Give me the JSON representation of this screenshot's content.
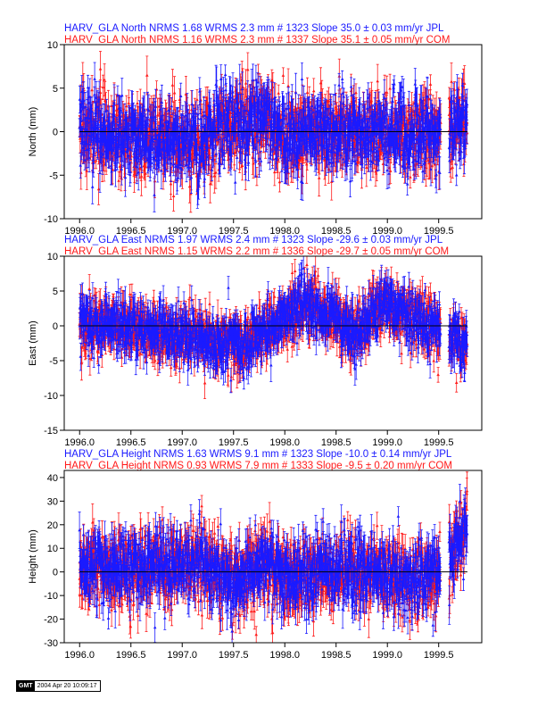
{
  "colors": {
    "jpl": "#1a1aff",
    "com": "#ff1a1a",
    "axis": "#000000"
  },
  "stamp": {
    "logo": "GMT",
    "timestamp": "2004 Apr 20 10:09:17"
  },
  "chart_data": [
    {
      "type": "scatter",
      "component": "north",
      "titles": [
        "HARV_GLA North NRMS 1.68 WRMS  2.3 mm # 1323 Slope   35.0 ±  0.03 mm/yr JPL",
        "HARV_GLA North NRMS 1.16 WRMS  2.3 mm # 1337 Slope   35.1 ±  0.05 mm/yr COM"
      ],
      "xlabel": "",
      "ylabel": "North (mm)",
      "xlim": [
        1995.85,
        1999.92
      ],
      "ylim": [
        -10,
        10
      ],
      "x_ticks": [
        1996.0,
        1996.5,
        1997.0,
        1997.5,
        1998.0,
        1998.5,
        1999.0,
        1999.5
      ],
      "x_tick_labels": [
        "1996.0",
        "1996.5",
        "1997.0",
        "1997.5",
        "1998.0",
        "1998.5",
        "1999.0",
        "1999.5"
      ],
      "y_ticks": [
        -10,
        -5,
        0,
        5,
        10
      ],
      "y_tick_labels": [
        "-10",
        "-5",
        "0",
        "5",
        "10"
      ],
      "x_range": [
        1996.0,
        1999.78
      ],
      "gaps": [
        [
          1999.52,
          1999.6
        ]
      ],
      "scatter_sd": 2.3,
      "error_bar": 1.5,
      "wander": [
        [
          1996.0,
          0.5
        ],
        [
          1996.3,
          -0.8
        ],
        [
          1996.7,
          -0.5
        ],
        [
          1997.1,
          -1.5
        ],
        [
          1997.35,
          0.2
        ],
        [
          1997.75,
          1.8
        ],
        [
          1998.0,
          -0.5
        ],
        [
          1998.3,
          0.4
        ],
        [
          1998.7,
          -0.3
        ],
        [
          1999.0,
          0.3
        ],
        [
          1999.3,
          -0.8
        ],
        [
          1999.8,
          1.2
        ]
      ],
      "series": [
        {
          "name": "JPL",
          "n": 1323,
          "nrms": 1.68,
          "wrms_mm": 2.3,
          "slope_mm_yr": 35.0,
          "slope_sigma": 0.03
        },
        {
          "name": "COM",
          "n": 1337,
          "nrms": 1.16,
          "wrms_mm": 2.3,
          "slope_mm_yr": 35.1,
          "slope_sigma": 0.05
        }
      ]
    },
    {
      "type": "scatter",
      "component": "east",
      "titles": [
        "HARV_GLA East NRMS 1.97 WRMS  2.4 mm # 1323 Slope  -29.6 ±  0.03 mm/yr JPL",
        "HARV_GLA East NRMS 1.15 WRMS  2.2 mm # 1336 Slope  -29.7 ±  0.05 mm/yr COM"
      ],
      "xlabel": "",
      "ylabel": "East (mm)",
      "xlim": [
        1995.85,
        1999.92
      ],
      "ylim": [
        -15,
        10
      ],
      "x_ticks": [
        1996.0,
        1996.5,
        1997.0,
        1997.5,
        1998.0,
        1998.5,
        1999.0,
        1999.5
      ],
      "x_tick_labels": [
        "1996.0",
        "1996.5",
        "1997.0",
        "1997.5",
        "1998.0",
        "1998.5",
        "1999.0",
        "1999.5"
      ],
      "y_ticks": [
        -15,
        -10,
        -5,
        0,
        5,
        10
      ],
      "y_tick_labels": [
        "-15",
        "-10",
        "-5",
        "0",
        "5",
        "10"
      ],
      "x_range": [
        1996.0,
        1999.78
      ],
      "gaps": [
        [
          1999.52,
          1999.6
        ]
      ],
      "scatter_sd": 2.0,
      "error_bar": 1.6,
      "wander": [
        [
          1996.0,
          0.5
        ],
        [
          1996.4,
          0.0
        ],
        [
          1996.8,
          -1.0
        ],
        [
          1997.2,
          -1.8
        ],
        [
          1997.6,
          -2.5
        ],
        [
          1997.95,
          0.5
        ],
        [
          1998.2,
          3.0
        ],
        [
          1998.45,
          1.5
        ],
        [
          1998.7,
          -1.5
        ],
        [
          1998.95,
          3.5
        ],
        [
          1999.3,
          0.5
        ],
        [
          1999.55,
          -1.0
        ],
        [
          1999.8,
          -3.0
        ]
      ],
      "series": [
        {
          "name": "JPL",
          "n": 1323,
          "nrms": 1.97,
          "wrms_mm": 2.4,
          "slope_mm_yr": -29.6,
          "slope_sigma": 0.03
        },
        {
          "name": "COM",
          "n": 1336,
          "nrms": 1.15,
          "wrms_mm": 2.2,
          "slope_mm_yr": -29.7,
          "slope_sigma": 0.05
        }
      ]
    },
    {
      "type": "scatter",
      "component": "height",
      "titles": [
        "HARV_GLA Height NRMS 1.63 WRMS  9.1 mm # 1323 Slope  -10.0 ±  0.14 mm/yr JPL",
        "HARV_GLA Height NRMS 0.93 WRMS  7.9 mm # 1333 Slope   -9.5 ±  0.20 mm/yr COM"
      ],
      "xlabel": "",
      "ylabel": "Height (mm)",
      "xlim": [
        1995.85,
        1999.92
      ],
      "ylim": [
        -30,
        43
      ],
      "x_ticks": [
        1996.0,
        1996.5,
        1997.0,
        1997.5,
        1998.0,
        1998.5,
        1999.0,
        1999.5
      ],
      "x_tick_labels": [
        "1996.0",
        "1996.5",
        "1997.0",
        "1997.5",
        "1998.0",
        "1998.5",
        "1999.0",
        "1999.5"
      ],
      "y_ticks": [
        -30,
        -20,
        -10,
        0,
        10,
        20,
        30,
        40
      ],
      "y_tick_labels": [
        "-30",
        "-20",
        "-10",
        "0",
        "10",
        "20",
        "30",
        "40"
      ],
      "x_range": [
        1996.0,
        1999.78
      ],
      "gaps": [
        [
          1999.52,
          1999.6
        ]
      ],
      "scatter_sd": 8.0,
      "error_bar": 5.5,
      "wander": [
        [
          1996.0,
          2.0
        ],
        [
          1996.4,
          1.0
        ],
        [
          1996.8,
          2.0
        ],
        [
          1997.2,
          4.0
        ],
        [
          1997.5,
          -5.0
        ],
        [
          1997.8,
          3.0
        ],
        [
          1998.05,
          -3.0
        ],
        [
          1998.4,
          1.0
        ],
        [
          1998.8,
          0.0
        ],
        [
          1999.2,
          -3.0
        ],
        [
          1999.5,
          -1.0
        ],
        [
          1999.65,
          8.0
        ],
        [
          1999.78,
          22.0
        ]
      ],
      "series": [
        {
          "name": "JPL",
          "n": 1323,
          "nrms": 1.63,
          "wrms_mm": 9.1,
          "slope_mm_yr": -10.0,
          "slope_sigma": 0.14
        },
        {
          "name": "COM",
          "n": 1333,
          "nrms": 0.93,
          "wrms_mm": 7.9,
          "slope_mm_yr": -9.5,
          "slope_sigma": 0.2
        }
      ]
    }
  ]
}
